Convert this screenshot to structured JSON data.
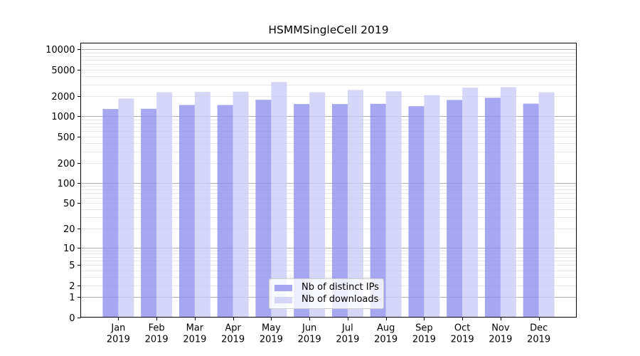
{
  "chart_data": {
    "type": "bar",
    "title": "HSMMSingleCell 2019",
    "xlabel": "",
    "ylabel": "",
    "y_scale": "log10(1+x)",
    "grid": "on",
    "legend_position": "lower center",
    "categories": [
      "Jan",
      "Feb",
      "Mar",
      "Apr",
      "May",
      "Jun",
      "Jul",
      "Aug",
      "Sep",
      "Oct",
      "Nov",
      "Dec"
    ],
    "x_year_label": "2019",
    "series": [
      {
        "name": "Nb of distinct IPs",
        "color": "#9090ee",
        "values": [
          1290,
          1300,
          1480,
          1480,
          1770,
          1530,
          1530,
          1540,
          1420,
          1760,
          1900,
          1550
        ]
      },
      {
        "name": "Nb of downloads",
        "color": "#ccccf8",
        "values": [
          1850,
          2300,
          2320,
          2340,
          3260,
          2300,
          2480,
          2370,
          2080,
          2690,
          2740,
          2290
        ]
      }
    ],
    "y_axis": {
      "tick_values": [
        0,
        1,
        2,
        5,
        10,
        20,
        50,
        100,
        200,
        500,
        1000,
        2000,
        5000,
        10000
      ],
      "tick_labels": [
        "0",
        "1",
        "2",
        "5",
        "10",
        "20",
        "50",
        "100",
        "200",
        "500",
        "1000",
        "2000",
        "5000",
        "10000"
      ],
      "range_top": 12400
    }
  },
  "legend": {
    "items": [
      {
        "label": "Nb of distinct IPs"
      },
      {
        "label": "Nb of downloads"
      }
    ]
  },
  "style": {
    "bar_opacity": 0.8,
    "grid_major_color": "#b0b0b0",
    "grid_minor_color": "#e7e7e7",
    "spine_color": "#000000",
    "tick_color": "#000000",
    "text_color": "#000000",
    "legend_border_color": "#cccccc",
    "legend_bg": "rgba(255,255,255,0.8)"
  }
}
